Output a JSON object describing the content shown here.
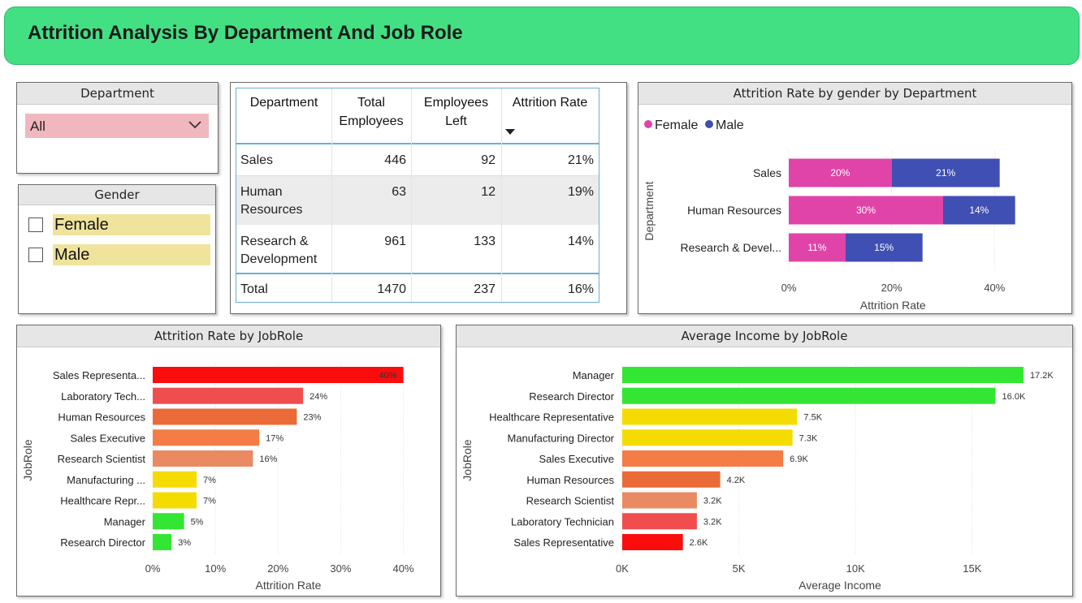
{
  "title": "Attrition Analysis By Department And Job Role",
  "department_slicer": {
    "title": "Department",
    "value": "All"
  },
  "gender_slicer": {
    "title": "Gender",
    "options": [
      "Female",
      "Male"
    ]
  },
  "table": {
    "headers": [
      "Department",
      "Total Employees",
      "Employees Left",
      "Attrition Rate"
    ],
    "header_lines": [
      [
        "Department"
      ],
      [
        "Total",
        "Employees"
      ],
      [
        "Employees",
        "Left"
      ],
      [
        "Attrition Rate"
      ]
    ],
    "rows": [
      {
        "dept_lines": [
          "Sales"
        ],
        "total": "446",
        "left": "92",
        "rate": "21%"
      },
      {
        "dept_lines": [
          "Human",
          "Resources"
        ],
        "total": "63",
        "left": "12",
        "rate": "19%"
      },
      {
        "dept_lines": [
          "Research &",
          "Development"
        ],
        "total": "961",
        "left": "133",
        "rate": "14%"
      }
    ],
    "total_row": {
      "label": "Total",
      "total": "1470",
      "left": "237",
      "rate": "16%"
    }
  },
  "colors": {
    "female": "#e044a8",
    "male": "#3f4fb3",
    "header": "#42e083"
  },
  "chart_data": [
    {
      "type": "bar",
      "title": "Attrition Rate by gender by Department",
      "orientation": "horizontal",
      "stacked": true,
      "categories": [
        "Sales",
        "Human Resources",
        "Research & Devel..."
      ],
      "series": [
        {
          "name": "Female",
          "values": [
            20,
            30,
            11
          ],
          "labels": [
            "20%",
            "30%",
            "11%"
          ],
          "color": "#e044a8"
        },
        {
          "name": "Male",
          "values": [
            21,
            14,
            15
          ],
          "labels": [
            "21%",
            "14%",
            "15%"
          ],
          "color": "#3f4fb3"
        }
      ],
      "xlabel": "Attrition Rate",
      "ylabel": "Department",
      "xlim": [
        0,
        45
      ],
      "xticks": [
        0,
        20,
        40
      ],
      "xtick_labels": [
        "0%",
        "20%",
        "40%"
      ],
      "legend": "top-left"
    },
    {
      "type": "bar",
      "title": "Attrition Rate by JobRole",
      "orientation": "horizontal",
      "categories": [
        "Sales Representa...",
        "Laboratory Tech...",
        "Human Resources",
        "Sales Executive",
        "Research Scientist",
        "Manufacturing ...",
        "Healthcare Repr...",
        "Manager",
        "Research Director"
      ],
      "values": [
        40,
        24,
        23,
        17,
        16,
        7,
        7,
        5,
        3
      ],
      "labels": [
        "40%",
        "24%",
        "23%",
        "17%",
        "16%",
        "7%",
        "7%",
        "5%",
        "3%"
      ],
      "colors": [
        "#fc0d0d",
        "#f04e4e",
        "#ea6b38",
        "#f47c46",
        "#ea8a62",
        "#f5dc00",
        "#f5dc00",
        "#33e633",
        "#33e633"
      ],
      "xlabel": "Attrition Rate",
      "ylabel": "JobRole",
      "xlim": [
        0,
        42
      ],
      "xticks": [
        0,
        10,
        20,
        30,
        40
      ],
      "xtick_labels": [
        "0%",
        "10%",
        "20%",
        "30%",
        "40%"
      ]
    },
    {
      "type": "bar",
      "title": "Average Income by JobRole",
      "orientation": "horizontal",
      "categories": [
        "Manager",
        "Research Director",
        "Healthcare Representative",
        "Manufacturing Director",
        "Sales Executive",
        "Human Resources",
        "Research Scientist",
        "Laboratory Technician",
        "Sales Representative"
      ],
      "values": [
        17200,
        16000,
        7500,
        7300,
        6900,
        4200,
        3200,
        3200,
        2600
      ],
      "labels": [
        "17.2K",
        "16.0K",
        "7.5K",
        "7.3K",
        "6.9K",
        "4.2K",
        "3.2K",
        "3.2K",
        "2.6K"
      ],
      "colors": [
        "#33e633",
        "#33e633",
        "#f5dc00",
        "#f5dc00",
        "#f47c46",
        "#ea6b38",
        "#ea8a62",
        "#f04e4e",
        "#fc0d0d"
      ],
      "xlabel": "Average Income",
      "ylabel": "JobRole",
      "xlim": [
        0,
        18000
      ],
      "xticks": [
        0,
        5000,
        10000,
        15000
      ],
      "xtick_labels": [
        "0K",
        "5K",
        "10K",
        "15K"
      ]
    }
  ]
}
